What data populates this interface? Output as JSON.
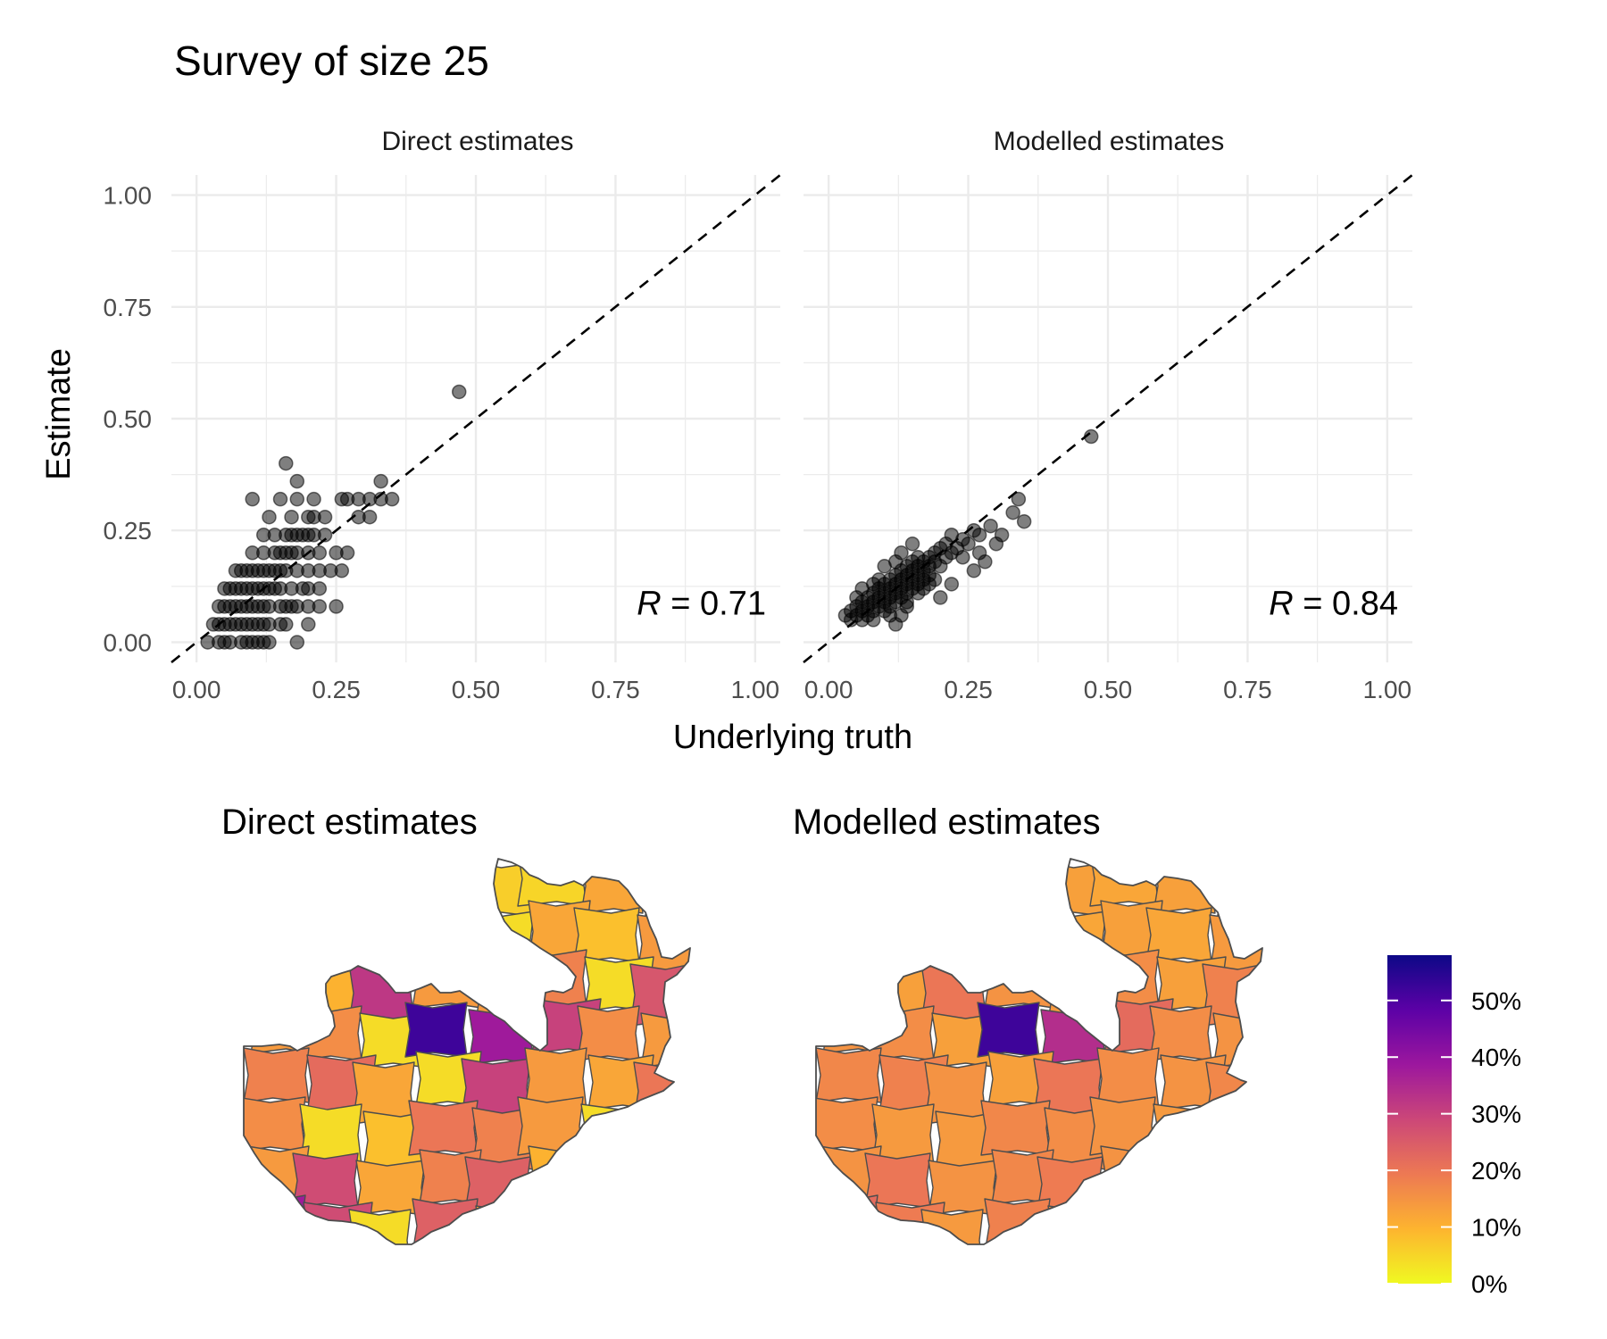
{
  "title": "Survey of size 25",
  "xlabel": "Underlying truth",
  "ylabel": "Estimate",
  "colors": {
    "grid": "#ebebeb",
    "point": "#000000",
    "map_border": "#4d4d4d",
    "plasma_scale": [
      "#f0f921",
      "#fdb42f",
      "#ed7953",
      "#cc4778",
      "#9c179e",
      "#5c01a6",
      "#0d0887"
    ]
  },
  "chart_data": [
    {
      "type": "scatter",
      "title": "Direct estimates",
      "xlabel": "Underlying truth",
      "ylabel": "Estimate",
      "xlim": [
        0,
        1
      ],
      "ylim": [
        0,
        1
      ],
      "xticks": [
        "0.00",
        "0.25",
        "0.50",
        "0.75",
        "1.00"
      ],
      "yticks": [
        "0.00",
        "0.25",
        "0.50",
        "0.75",
        "1.00"
      ],
      "grid": true,
      "reference_line": "y = x (dashed)",
      "annotation": {
        "var": "R",
        "eq": " = ",
        "value": "0.71"
      },
      "points": [
        [
          0.02,
          0.0
        ],
        [
          0.04,
          0.0
        ],
        [
          0.05,
          0.0
        ],
        [
          0.06,
          0.0
        ],
        [
          0.08,
          0.0
        ],
        [
          0.09,
          0.0
        ],
        [
          0.1,
          0.0
        ],
        [
          0.11,
          0.0
        ],
        [
          0.12,
          0.0
        ],
        [
          0.13,
          0.0
        ],
        [
          0.18,
          0.0
        ],
        [
          0.03,
          0.04
        ],
        [
          0.04,
          0.04
        ],
        [
          0.05,
          0.04
        ],
        [
          0.06,
          0.04
        ],
        [
          0.07,
          0.04
        ],
        [
          0.08,
          0.04
        ],
        [
          0.09,
          0.04
        ],
        [
          0.1,
          0.04
        ],
        [
          0.11,
          0.04
        ],
        [
          0.12,
          0.04
        ],
        [
          0.13,
          0.04
        ],
        [
          0.15,
          0.04
        ],
        [
          0.16,
          0.04
        ],
        [
          0.2,
          0.04
        ],
        [
          0.04,
          0.08
        ],
        [
          0.05,
          0.08
        ],
        [
          0.06,
          0.08
        ],
        [
          0.07,
          0.08
        ],
        [
          0.08,
          0.08
        ],
        [
          0.09,
          0.08
        ],
        [
          0.1,
          0.08
        ],
        [
          0.11,
          0.08
        ],
        [
          0.12,
          0.08
        ],
        [
          0.13,
          0.08
        ],
        [
          0.15,
          0.08
        ],
        [
          0.16,
          0.08
        ],
        [
          0.17,
          0.08
        ],
        [
          0.18,
          0.08
        ],
        [
          0.2,
          0.08
        ],
        [
          0.22,
          0.08
        ],
        [
          0.25,
          0.08
        ],
        [
          0.05,
          0.12
        ],
        [
          0.06,
          0.12
        ],
        [
          0.07,
          0.12
        ],
        [
          0.08,
          0.12
        ],
        [
          0.09,
          0.12
        ],
        [
          0.1,
          0.12
        ],
        [
          0.11,
          0.12
        ],
        [
          0.12,
          0.12
        ],
        [
          0.13,
          0.12
        ],
        [
          0.14,
          0.12
        ],
        [
          0.15,
          0.12
        ],
        [
          0.17,
          0.12
        ],
        [
          0.19,
          0.12
        ],
        [
          0.2,
          0.12
        ],
        [
          0.22,
          0.12
        ],
        [
          0.07,
          0.16
        ],
        [
          0.08,
          0.16
        ],
        [
          0.09,
          0.16
        ],
        [
          0.1,
          0.16
        ],
        [
          0.11,
          0.16
        ],
        [
          0.12,
          0.16
        ],
        [
          0.13,
          0.16
        ],
        [
          0.14,
          0.16
        ],
        [
          0.15,
          0.16
        ],
        [
          0.16,
          0.16
        ],
        [
          0.18,
          0.16
        ],
        [
          0.2,
          0.16
        ],
        [
          0.22,
          0.16
        ],
        [
          0.24,
          0.16
        ],
        [
          0.26,
          0.16
        ],
        [
          0.1,
          0.2
        ],
        [
          0.12,
          0.2
        ],
        [
          0.14,
          0.2
        ],
        [
          0.15,
          0.2
        ],
        [
          0.16,
          0.2
        ],
        [
          0.17,
          0.2
        ],
        [
          0.18,
          0.2
        ],
        [
          0.2,
          0.2
        ],
        [
          0.22,
          0.2
        ],
        [
          0.25,
          0.2
        ],
        [
          0.27,
          0.2
        ],
        [
          0.12,
          0.24
        ],
        [
          0.14,
          0.24
        ],
        [
          0.16,
          0.24
        ],
        [
          0.17,
          0.24
        ],
        [
          0.18,
          0.24
        ],
        [
          0.19,
          0.24
        ],
        [
          0.2,
          0.24
        ],
        [
          0.21,
          0.24
        ],
        [
          0.23,
          0.24
        ],
        [
          0.13,
          0.28
        ],
        [
          0.17,
          0.28
        ],
        [
          0.2,
          0.28
        ],
        [
          0.21,
          0.28
        ],
        [
          0.23,
          0.28
        ],
        [
          0.29,
          0.28
        ],
        [
          0.31,
          0.28
        ],
        [
          0.1,
          0.32
        ],
        [
          0.15,
          0.32
        ],
        [
          0.18,
          0.32
        ],
        [
          0.21,
          0.32
        ],
        [
          0.26,
          0.32
        ],
        [
          0.27,
          0.32
        ],
        [
          0.29,
          0.32
        ],
        [
          0.31,
          0.32
        ],
        [
          0.33,
          0.32
        ],
        [
          0.35,
          0.32
        ],
        [
          0.18,
          0.36
        ],
        [
          0.33,
          0.36
        ],
        [
          0.16,
          0.4
        ],
        [
          0.47,
          0.56
        ]
      ]
    },
    {
      "type": "scatter",
      "title": "Modelled estimates",
      "xlabel": "Underlying truth",
      "ylabel": "Estimate",
      "xlim": [
        0,
        1
      ],
      "ylim": [
        0,
        1
      ],
      "xticks": [
        "0.00",
        "0.25",
        "0.50",
        "0.75",
        "1.00"
      ],
      "yticks": [
        "0.00",
        "0.25",
        "0.50",
        "0.75",
        "1.00"
      ],
      "grid": true,
      "reference_line": "y = x (dashed)",
      "annotation": {
        "var": "R",
        "eq": " = ",
        "value": "0.84"
      },
      "points": [
        [
          0.03,
          0.06
        ],
        [
          0.04,
          0.07
        ],
        [
          0.04,
          0.05
        ],
        [
          0.05,
          0.08
        ],
        [
          0.05,
          0.06
        ],
        [
          0.06,
          0.07
        ],
        [
          0.06,
          0.09
        ],
        [
          0.06,
          0.05
        ],
        [
          0.07,
          0.08
        ],
        [
          0.07,
          0.1
        ],
        [
          0.07,
          0.06
        ],
        [
          0.08,
          0.09
        ],
        [
          0.08,
          0.11
        ],
        [
          0.08,
          0.07
        ],
        [
          0.08,
          0.05
        ],
        [
          0.09,
          0.1
        ],
        [
          0.09,
          0.12
        ],
        [
          0.09,
          0.08
        ],
        [
          0.1,
          0.11
        ],
        [
          0.1,
          0.09
        ],
        [
          0.1,
          0.13
        ],
        [
          0.1,
          0.07
        ],
        [
          0.11,
          0.12
        ],
        [
          0.11,
          0.1
        ],
        [
          0.11,
          0.14
        ],
        [
          0.11,
          0.08
        ],
        [
          0.12,
          0.13
        ],
        [
          0.12,
          0.11
        ],
        [
          0.12,
          0.09
        ],
        [
          0.12,
          0.15
        ],
        [
          0.13,
          0.14
        ],
        [
          0.13,
          0.12
        ],
        [
          0.13,
          0.1
        ],
        [
          0.13,
          0.16
        ],
        [
          0.14,
          0.15
        ],
        [
          0.14,
          0.13
        ],
        [
          0.14,
          0.11
        ],
        [
          0.14,
          0.17
        ],
        [
          0.14,
          0.09
        ],
        [
          0.15,
          0.16
        ],
        [
          0.15,
          0.14
        ],
        [
          0.15,
          0.12
        ],
        [
          0.15,
          0.18
        ],
        [
          0.16,
          0.17
        ],
        [
          0.16,
          0.15
        ],
        [
          0.16,
          0.13
        ],
        [
          0.16,
          0.19
        ],
        [
          0.17,
          0.18
        ],
        [
          0.17,
          0.16
        ],
        [
          0.17,
          0.14
        ],
        [
          0.18,
          0.19
        ],
        [
          0.18,
          0.17
        ],
        [
          0.18,
          0.15
        ],
        [
          0.19,
          0.2
        ],
        [
          0.19,
          0.18
        ],
        [
          0.2,
          0.21
        ],
        [
          0.2,
          0.17
        ],
        [
          0.21,
          0.22
        ],
        [
          0.21,
          0.19
        ],
        [
          0.22,
          0.2
        ],
        [
          0.22,
          0.24
        ],
        [
          0.23,
          0.21
        ],
        [
          0.24,
          0.23
        ],
        [
          0.25,
          0.22
        ],
        [
          0.26,
          0.25
        ],
        [
          0.27,
          0.24
        ],
        [
          0.29,
          0.26
        ],
        [
          0.3,
          0.22
        ],
        [
          0.31,
          0.24
        ],
        [
          0.33,
          0.29
        ],
        [
          0.34,
          0.32
        ],
        [
          0.35,
          0.27
        ],
        [
          0.47,
          0.46
        ],
        [
          0.12,
          0.04
        ],
        [
          0.13,
          0.06
        ],
        [
          0.17,
          0.12
        ],
        [
          0.19,
          0.14
        ],
        [
          0.2,
          0.1
        ],
        [
          0.22,
          0.13
        ],
        [
          0.26,
          0.16
        ],
        [
          0.13,
          0.2
        ],
        [
          0.15,
          0.22
        ],
        [
          0.1,
          0.17
        ],
        [
          0.09,
          0.14
        ],
        [
          0.06,
          0.12
        ],
        [
          0.05,
          0.1
        ],
        [
          0.16,
          0.11
        ],
        [
          0.18,
          0.13
        ],
        [
          0.11,
          0.06
        ],
        [
          0.14,
          0.08
        ],
        [
          0.08,
          0.13
        ],
        [
          0.12,
          0.18
        ],
        [
          0.24,
          0.19
        ],
        [
          0.27,
          0.2
        ],
        [
          0.28,
          0.18
        ]
      ]
    },
    {
      "type": "heatmap",
      "title": "Direct estimates",
      "legend": {
        "labels": [
          "0%",
          "10%",
          "20%",
          "30%",
          "40%",
          "50%"
        ],
        "range": [
          0,
          0.58
        ],
        "placement": "right"
      },
      "region_values": [
        0.16,
        0.12,
        0.1,
        0.06,
        0.06,
        0.05,
        0.12,
        0.08,
        0.12,
        0.08,
        0.16,
        0.08,
        0.04,
        0.12,
        0.08,
        0.14,
        0.06,
        0.1,
        0.32,
        0.14,
        0.14,
        0.18,
        0.04,
        0.26,
        0.14,
        0.16,
        0.04,
        0.52,
        0.38,
        0.3,
        0.16,
        0.14,
        0.18,
        0.22,
        0.12,
        0.04,
        0.3,
        0.14,
        0.12,
        0.2,
        0.16,
        0.04,
        0.08,
        0.2,
        0.18,
        0.14,
        0.04,
        0.06,
        0.14,
        0.28,
        0.12,
        0.18,
        0.24,
        0.1,
        0.08,
        0.14,
        0.38,
        0.28,
        0.04,
        0.24,
        0.12,
        0.18,
        0.02,
        0.16
      ]
    },
    {
      "type": "heatmap",
      "title": "Modelled estimates",
      "legend": {
        "labels": [
          "0%",
          "10%",
          "20%",
          "30%",
          "40%",
          "50%"
        ],
        "range": [
          0,
          0.58
        ],
        "placement": "right"
      },
      "region_values": [
        0.14,
        0.14,
        0.13,
        0.12,
        0.13,
        0.12,
        0.13,
        0.12,
        0.14,
        0.13,
        0.14,
        0.12,
        0.12,
        0.13,
        0.12,
        0.14,
        0.12,
        0.13,
        0.2,
        0.15,
        0.14,
        0.16,
        0.13,
        0.18,
        0.15,
        0.16,
        0.13,
        0.52,
        0.34,
        0.22,
        0.16,
        0.15,
        0.17,
        0.18,
        0.15,
        0.13,
        0.2,
        0.16,
        0.15,
        0.17,
        0.16,
        0.14,
        0.14,
        0.17,
        0.16,
        0.15,
        0.14,
        0.14,
        0.15,
        0.2,
        0.15,
        0.17,
        0.19,
        0.15,
        0.14,
        0.15,
        0.22,
        0.19,
        0.14,
        0.18,
        0.15,
        0.17,
        0.14,
        0.16
      ]
    }
  ]
}
